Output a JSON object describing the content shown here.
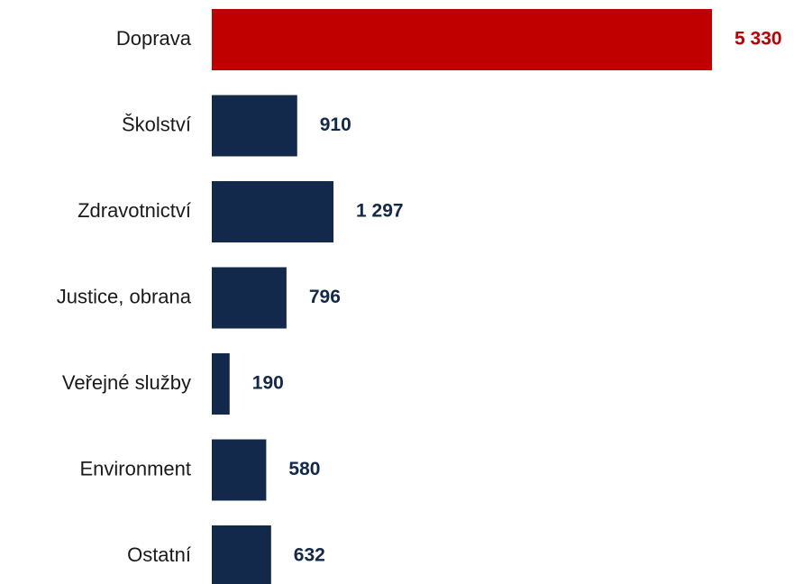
{
  "chart_data": {
    "type": "hbar",
    "categories": [
      "Doprava",
      "Školství",
      "Zdravotnictví",
      "Justice, obrana",
      "Veřejné služby",
      "Environment",
      "Ostatní"
    ],
    "values": [
      5330,
      910,
      1297,
      796,
      190,
      580,
      632
    ],
    "value_labels": [
      "5 330",
      "910",
      "1 297",
      "796",
      "190",
      "580",
      "632"
    ],
    "colors": [
      "#c00000",
      "#13294b",
      "#13294b",
      "#13294b",
      "#13294b",
      "#13294b",
      "#13294b"
    ],
    "xlim": [
      0,
      5330
    ]
  }
}
